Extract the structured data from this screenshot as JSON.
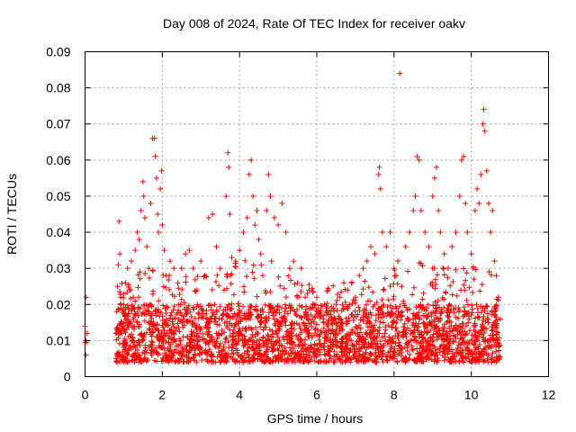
{
  "chart_data": {
    "type": "scatter",
    "title": "Day 008 of 2024, Rate Of TEC Index for receiver oakv",
    "xlabel": "GPS time / hours",
    "ylabel": "ROTI / TECUs",
    "xlim": [
      0,
      12
    ],
    "ylim": [
      0,
      0.09
    ],
    "grid": true,
    "marker": "plus",
    "color": "#ff0000",
    "x_ticks": [
      {
        "value": 0,
        "label": "0"
      },
      {
        "value": 2,
        "label": "2"
      },
      {
        "value": 4,
        "label": "4"
      },
      {
        "value": 6,
        "label": "6"
      },
      {
        "value": 8,
        "label": "8"
      },
      {
        "value": 10,
        "label": "10"
      },
      {
        "value": 12,
        "label": "12"
      }
    ],
    "y_ticks": [
      {
        "value": 0,
        "label": "0"
      },
      {
        "value": 0.01,
        "label": "0.01"
      },
      {
        "value": 0.02,
        "label": "0.02"
      },
      {
        "value": 0.03,
        "label": "0.03"
      },
      {
        "value": 0.04,
        "label": "0.04"
      },
      {
        "value": 0.05,
        "label": "0.05"
      },
      {
        "value": 0.06,
        "label": "0.06"
      },
      {
        "value": 0.07,
        "label": "0.07"
      },
      {
        "value": 0.08,
        "label": "0.08"
      },
      {
        "value": 0.09,
        "label": "0.09"
      }
    ],
    "series": [
      {
        "name": "ROTI",
        "points": [
          [
            0.0,
            0.0095
          ],
          [
            0.02,
            0.01
          ],
          [
            0.04,
            0.0095
          ],
          [
            0.0,
            0.014
          ],
          [
            0.03,
            0.022
          ],
          [
            0.02,
            0.006
          ],
          [
            0.05,
            0.012
          ],
          [
            0.8,
            0.012
          ],
          [
            0.82,
            0.018
          ],
          [
            0.84,
            0.025
          ],
          [
            0.86,
            0.031
          ],
          [
            0.88,
            0.043
          ],
          [
            0.9,
            0.034
          ],
          [
            0.92,
            0.022
          ],
          [
            0.95,
            0.015
          ],
          [
            0.98,
            0.009
          ],
          [
            1.0,
            0.02
          ],
          [
            1.05,
            0.026
          ],
          [
            1.1,
            0.03
          ],
          [
            1.15,
            0.024
          ],
          [
            1.2,
            0.032
          ],
          [
            1.25,
            0.022
          ],
          [
            1.3,
            0.035
          ],
          [
            1.35,
            0.04
          ],
          [
            1.4,
            0.038
          ],
          [
            1.45,
            0.046
          ],
          [
            1.5,
            0.054
          ],
          [
            1.52,
            0.05
          ],
          [
            1.55,
            0.044
          ],
          [
            1.6,
            0.036
          ],
          [
            1.65,
            0.03
          ],
          [
            1.7,
            0.048
          ],
          [
            1.75,
            0.066
          ],
          [
            1.8,
            0.066
          ],
          [
            1.82,
            0.061
          ],
          [
            1.85,
            0.055
          ],
          [
            1.88,
            0.045
          ],
          [
            1.9,
            0.04
          ],
          [
            1.95,
            0.052
          ],
          [
            1.98,
            0.057
          ],
          [
            2.0,
            0.042
          ],
          [
            2.05,
            0.035
          ],
          [
            2.1,
            0.028
          ],
          [
            2.2,
            0.032
          ],
          [
            2.3,
            0.03
          ],
          [
            2.4,
            0.026
          ],
          [
            2.5,
            0.03
          ],
          [
            2.6,
            0.034
          ],
          [
            2.7,
            0.035
          ],
          [
            2.8,
            0.03
          ],
          [
            2.9,
            0.024
          ],
          [
            3.0,
            0.032
          ],
          [
            3.1,
            0.028
          ],
          [
            3.2,
            0.044
          ],
          [
            3.3,
            0.045
          ],
          [
            3.4,
            0.036
          ],
          [
            3.5,
            0.03
          ],
          [
            3.6,
            0.024
          ],
          [
            3.65,
            0.05
          ],
          [
            3.7,
            0.062
          ],
          [
            3.72,
            0.058
          ],
          [
            3.75,
            0.045
          ],
          [
            3.8,
            0.033
          ],
          [
            3.9,
            0.032
          ],
          [
            4.0,
            0.035
          ],
          [
            4.1,
            0.04
          ],
          [
            4.2,
            0.044
          ],
          [
            4.25,
            0.056
          ],
          [
            4.3,
            0.06
          ],
          [
            4.35,
            0.05
          ],
          [
            4.4,
            0.042
          ],
          [
            4.45,
            0.046
          ],
          [
            4.5,
            0.038
          ],
          [
            4.55,
            0.034
          ],
          [
            4.6,
            0.028
          ],
          [
            4.7,
            0.046
          ],
          [
            4.75,
            0.056
          ],
          [
            4.8,
            0.05
          ],
          [
            4.9,
            0.044
          ],
          [
            5.0,
            0.042
          ],
          [
            5.1,
            0.048
          ],
          [
            5.2,
            0.04
          ],
          [
            5.3,
            0.03
          ],
          [
            5.4,
            0.032
          ],
          [
            5.5,
            0.026
          ],
          [
            5.6,
            0.03
          ],
          [
            5.7,
            0.022
          ],
          [
            5.8,
            0.024
          ],
          [
            5.9,
            0.02
          ],
          [
            6.0,
            0.022
          ],
          [
            6.1,
            0.018
          ],
          [
            6.2,
            0.02
          ],
          [
            6.3,
            0.024
          ],
          [
            6.4,
            0.016
          ],
          [
            6.5,
            0.02
          ],
          [
            6.6,
            0.022
          ],
          [
            6.7,
            0.026
          ],
          [
            6.8,
            0.024
          ],
          [
            6.9,
            0.026
          ],
          [
            7.0,
            0.022
          ],
          [
            7.1,
            0.028
          ],
          [
            7.2,
            0.03
          ],
          [
            7.3,
            0.032
          ],
          [
            7.4,
            0.036
          ],
          [
            7.5,
            0.034
          ],
          [
            7.6,
            0.056
          ],
          [
            7.62,
            0.058
          ],
          [
            7.65,
            0.052
          ],
          [
            7.7,
            0.04
          ],
          [
            7.8,
            0.036
          ],
          [
            7.9,
            0.04
          ],
          [
            8.0,
            0.03
          ],
          [
            8.05,
            0.028
          ],
          [
            8.1,
            0.032
          ],
          [
            8.15,
            0.084
          ],
          [
            8.2,
            0.025
          ],
          [
            8.3,
            0.036
          ],
          [
            8.4,
            0.04
          ],
          [
            8.5,
            0.046
          ],
          [
            8.55,
            0.05
          ],
          [
            8.6,
            0.061
          ],
          [
            8.65,
            0.06
          ],
          [
            8.7,
            0.046
          ],
          [
            8.8,
            0.04
          ],
          [
            8.9,
            0.036
          ],
          [
            9.0,
            0.05
          ],
          [
            9.05,
            0.055
          ],
          [
            9.1,
            0.058
          ],
          [
            9.15,
            0.046
          ],
          [
            9.2,
            0.04
          ],
          [
            9.3,
            0.034
          ],
          [
            9.4,
            0.03
          ],
          [
            9.5,
            0.036
          ],
          [
            9.6,
            0.04
          ],
          [
            9.7,
            0.05
          ],
          [
            9.75,
            0.06
          ],
          [
            9.8,
            0.061
          ],
          [
            9.85,
            0.048
          ],
          [
            9.9,
            0.04
          ],
          [
            10.0,
            0.034
          ],
          [
            10.05,
            0.03
          ],
          [
            10.1,
            0.046
          ],
          [
            10.15,
            0.052
          ],
          [
            10.2,
            0.048
          ],
          [
            10.25,
            0.056
          ],
          [
            10.3,
            0.07
          ],
          [
            10.32,
            0.074
          ],
          [
            10.35,
            0.068
          ],
          [
            10.4,
            0.057
          ],
          [
            10.45,
            0.048
          ],
          [
            10.5,
            0.04
          ],
          [
            10.55,
            0.046
          ],
          [
            10.6,
            0.032
          ],
          [
            10.65,
            0.028
          ],
          [
            10.7,
            0.022
          ],
          [
            10.75,
            0.016
          ]
        ]
      }
    ],
    "dense_band": {
      "x_range": [
        0.8,
        10.75
      ],
      "core_y_range": [
        0.004,
        0.02
      ],
      "envelope_y": [
        [
          0.8,
          0.02
        ],
        [
          1.5,
          0.024
        ],
        [
          2.5,
          0.022
        ],
        [
          3.5,
          0.024
        ],
        [
          4.5,
          0.028
        ],
        [
          5.5,
          0.022
        ],
        [
          6.5,
          0.02
        ],
        [
          7.5,
          0.022
        ],
        [
          8.5,
          0.026
        ],
        [
          9.5,
          0.024
        ],
        [
          10.5,
          0.026
        ],
        [
          10.75,
          0.022
        ]
      ]
    }
  }
}
